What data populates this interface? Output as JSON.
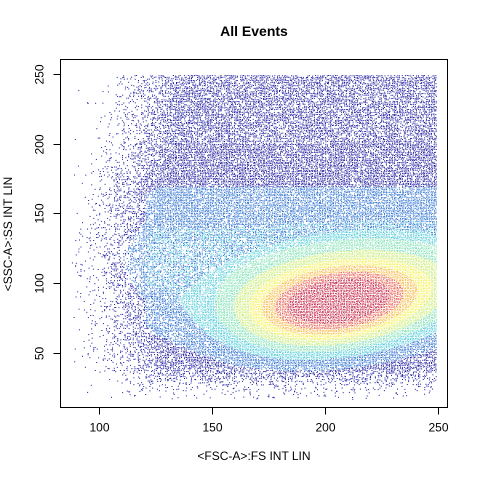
{
  "chart_data": {
    "type": "scatter",
    "subtype": "density-colored flow cytometry dot plot",
    "title": "All Events",
    "xlabel": "<FSC-A>:FS INT LIN",
    "ylabel": "<SSC-A>:SS INT LIN",
    "xlim": [
      83,
      254
    ],
    "ylim": [
      11,
      260
    ],
    "xticks": [
      100,
      150,
      200,
      250
    ],
    "yticks": [
      50,
      100,
      150,
      200,
      250
    ],
    "x_data_range": [
      88,
      249
    ],
    "y_data_range": [
      17,
      249
    ],
    "density_peak": {
      "x": 205,
      "y": 85
    },
    "density_spread": {
      "sx": 30,
      "sy": 22,
      "correlation": 0.25
    },
    "color_scale": [
      "#1a1a9e",
      "#2a6fd0",
      "#4ecad8",
      "#7ee0b4",
      "#c8ec70",
      "#f4f050",
      "#f8b840",
      "#e86050",
      "#c42040"
    ],
    "grid": false,
    "legend": "none"
  }
}
